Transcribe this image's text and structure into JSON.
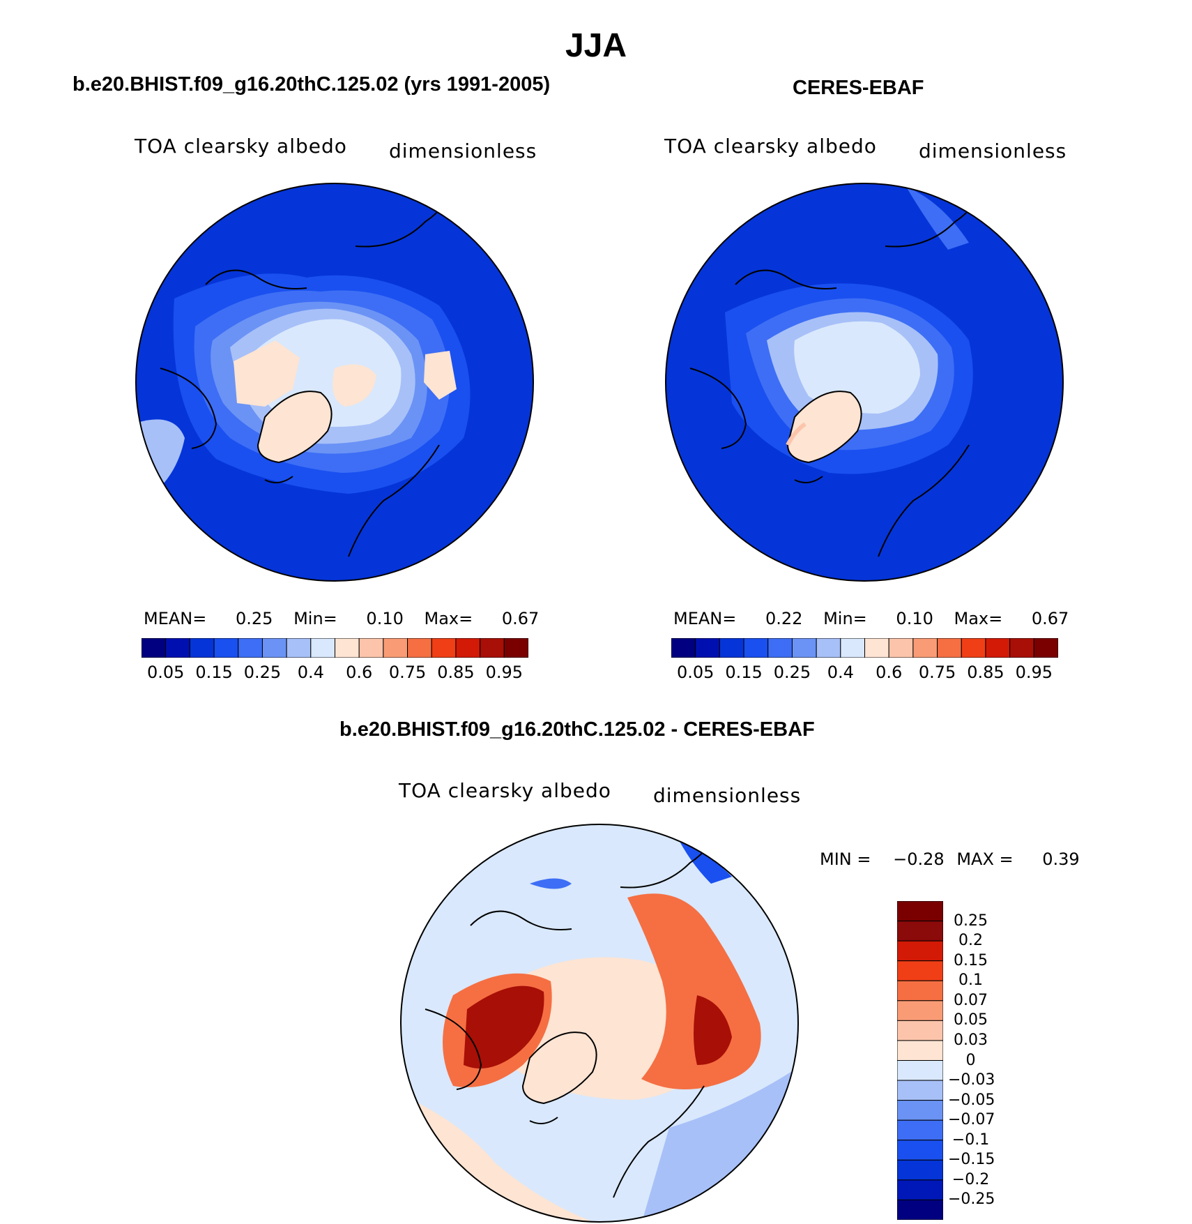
{
  "figure_title": "JJA",
  "colors": {
    "seq_levels": [
      "#000080",
      "#0010b0",
      "#0535d8",
      "#1a50f0",
      "#3d6ef5",
      "#6b93f5",
      "#a7c0f8",
      "#d9e8fc",
      "#fde4d3",
      "#fcc5ab",
      "#f99c75",
      "#f56f43",
      "#f03f16",
      "#d21a06",
      "#a80f06",
      "#7a0000"
    ],
    "diff_levels": [
      "#000080",
      "#0018b8",
      "#0535d8",
      "#1a50f0",
      "#3d6ef5",
      "#6b93f5",
      "#a7c0f8",
      "#d9e8fc",
      "#fde4d3",
      "#fcc5ab",
      "#f99c75",
      "#f56f43",
      "#f03f16",
      "#d21a06",
      "#8b0a0a"
    ]
  },
  "panels": [
    {
      "id": "model",
      "title": "b.e20.BHIST.f09_g16.20thC.125.02 (yrs 1991-2005)",
      "variable": "TOA clearsky albedo",
      "units": "dimensionless",
      "stats": {
        "mean_label": "MEAN=",
        "mean": "0.25",
        "min_label": "Min=",
        "min": "0.10",
        "max_label": "Max=",
        "max": "0.67"
      },
      "colorbar_ticks": [
        "0.05",
        "0.15",
        "0.25",
        "0.4",
        "0.6",
        "0.75",
        "0.85",
        "0.95"
      ]
    },
    {
      "id": "obs",
      "title": "CERES-EBAF",
      "variable": "TOA clearsky albedo",
      "units": "dimensionless",
      "stats": {
        "mean_label": "MEAN=",
        "mean": "0.22",
        "min_label": "Min=",
        "min": "0.10",
        "max_label": "Max=",
        "max": "0.67"
      },
      "colorbar_ticks": [
        "0.05",
        "0.15",
        "0.25",
        "0.4",
        "0.6",
        "0.75",
        "0.85",
        "0.95"
      ]
    },
    {
      "id": "diff",
      "title": "b.e20.BHIST.f09_g16.20thC.125.02 - CERES-EBAF",
      "variable": "TOA clearsky albedo",
      "units": "dimensionless",
      "stats": {
        "min_label": "MIN =",
        "min": "−0.28",
        "max_label": "MAX =",
        "max": "0.39"
      },
      "colorbar_labels": [
        "0.25",
        "0.2",
        "0.15",
        "0.1",
        "0.07",
        "0.05",
        "0.03",
        "0",
        "−0.03",
        "−0.05",
        "−0.07",
        "−0.1",
        "−0.15",
        "−0.2",
        "−0.25"
      ]
    }
  ]
}
